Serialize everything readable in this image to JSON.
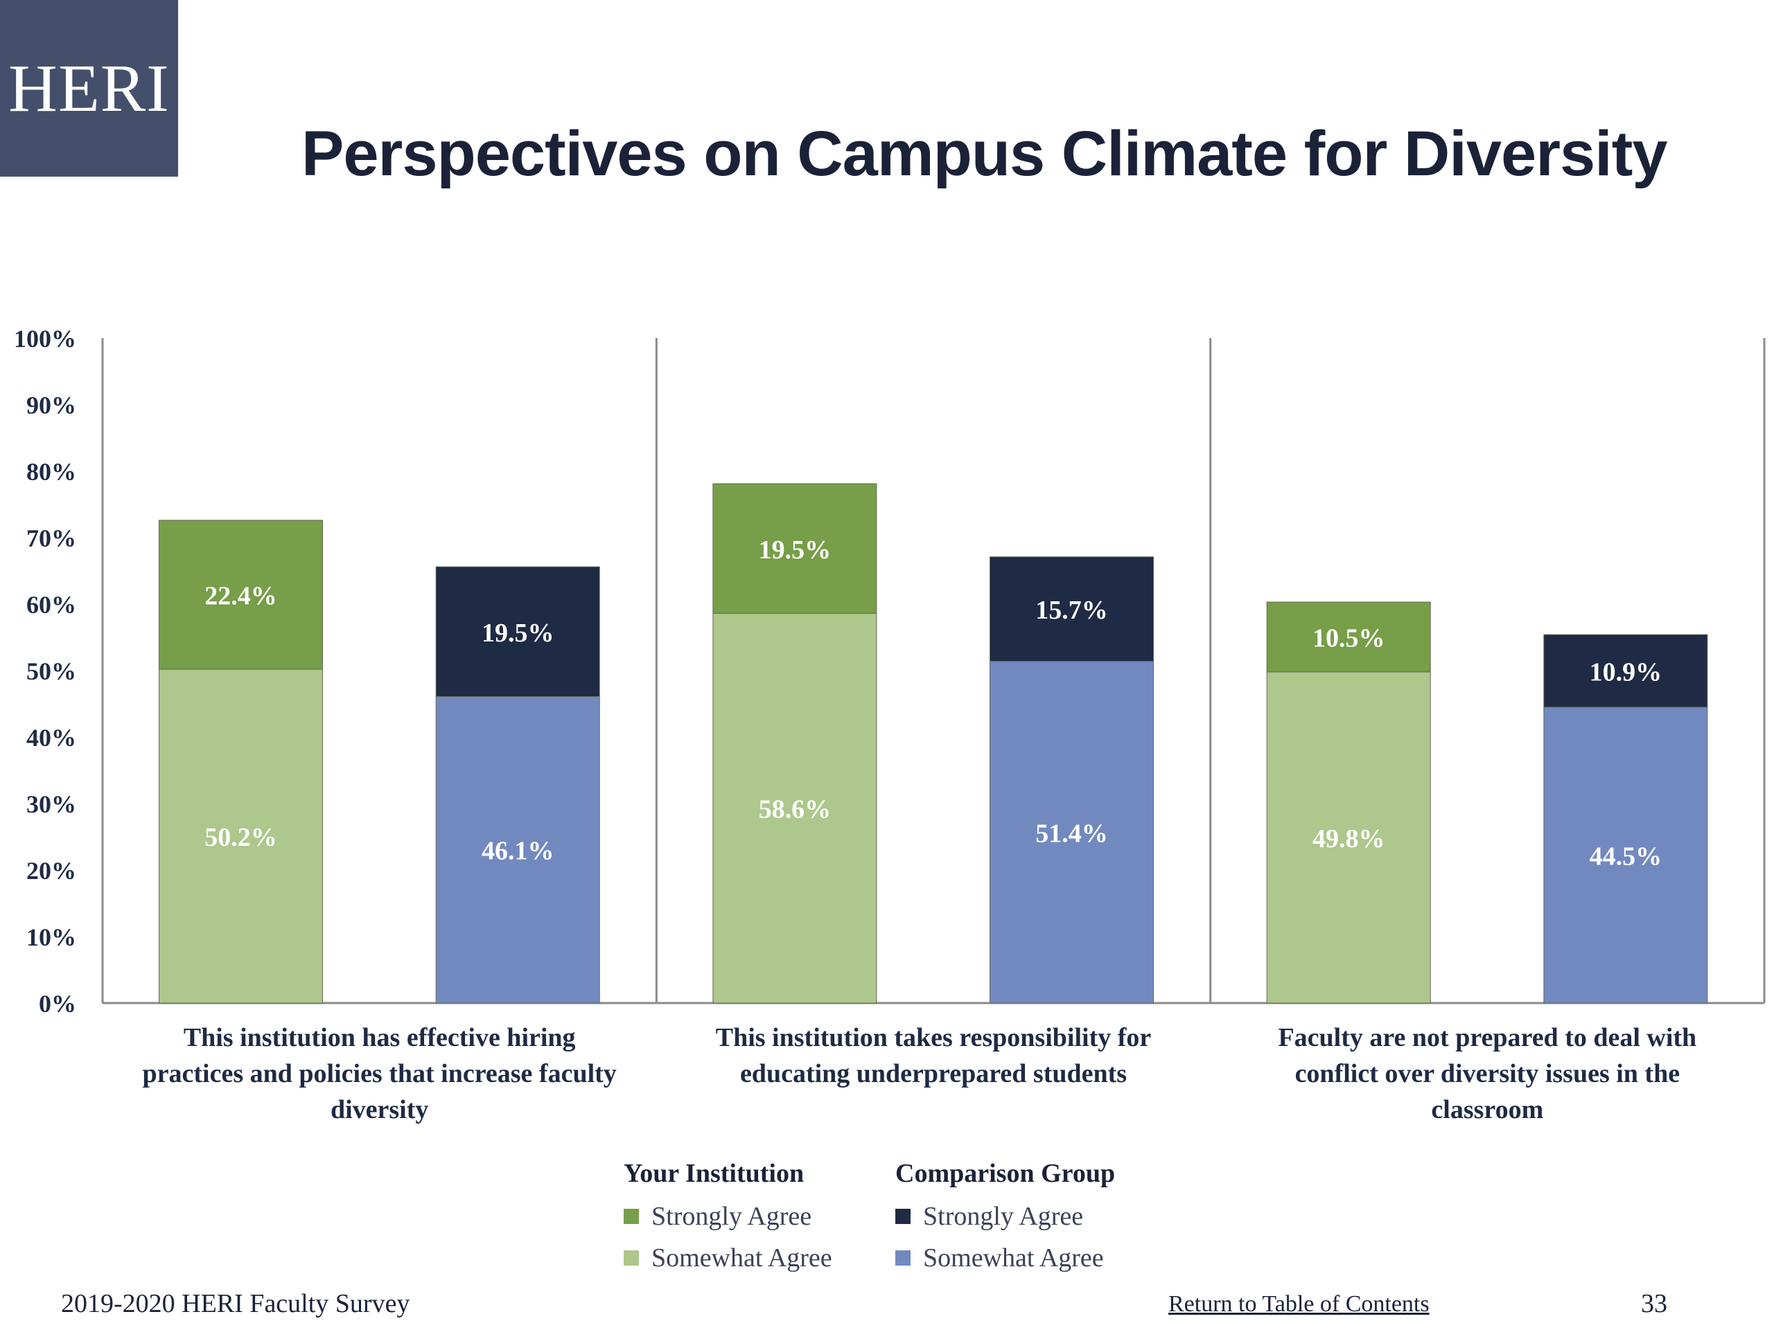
{
  "logo": {
    "text": "HERI"
  },
  "title": "Perspectives on Campus Climate for Diversity",
  "chart_data": {
    "type": "bar",
    "stacked": true,
    "categories": [
      [
        "This institution has effective hiring",
        "practices and policies that increase faculty",
        "diversity"
      ],
      [
        "This institution takes responsibility for",
        "educating underprepared students"
      ],
      [
        "Faculty are not prepared to deal with",
        "conflict over diversity issues in the",
        "classroom"
      ]
    ],
    "ylim": [
      0,
      100
    ],
    "yticks": [
      "0%",
      "10%",
      "20%",
      "30%",
      "40%",
      "50%",
      "60%",
      "70%",
      "80%",
      "90%",
      "100%"
    ],
    "series": [
      {
        "group": "Your Institution",
        "name": "Somewhat Agree",
        "color": "#adc78c",
        "values": [
          50.2,
          58.6,
          49.8
        ],
        "labels": [
          "50.2%",
          "58.6%",
          "49.8%"
        ]
      },
      {
        "group": "Your Institution",
        "name": "Strongly Agree",
        "color": "#779e48",
        "values": [
          22.4,
          19.5,
          10.5
        ],
        "labels": [
          "22.4%",
          "19.5%",
          "10.5%"
        ]
      },
      {
        "group": "Comparison Group",
        "name": "Somewhat Agree",
        "color": "#7289c0",
        "values": [
          46.1,
          51.4,
          44.5
        ],
        "labels": [
          "46.1%",
          "51.4%",
          "44.5%"
        ]
      },
      {
        "group": "Comparison Group",
        "name": "Strongly Agree",
        "color": "#1f2a44",
        "values": [
          19.5,
          15.7,
          10.9
        ],
        "labels": [
          "19.5%",
          "15.7%",
          "10.9%"
        ]
      }
    ],
    "legend": {
      "groups": [
        {
          "title": "Your Institution",
          "items": [
            {
              "label": "Strongly Agree",
              "color": "#779e48"
            },
            {
              "label": "Somewhat Agree",
              "color": "#adc78c"
            }
          ]
        },
        {
          "title": "Comparison Group",
          "items": [
            {
              "label": "Strongly Agree",
              "color": "#1f2a44"
            },
            {
              "label": "Somewhat Agree",
              "color": "#7289c0"
            }
          ]
        }
      ]
    }
  },
  "footer": {
    "source": "2019-2020 HERI Faculty Survey",
    "link": "Return to Table of Contents",
    "page": "33"
  }
}
